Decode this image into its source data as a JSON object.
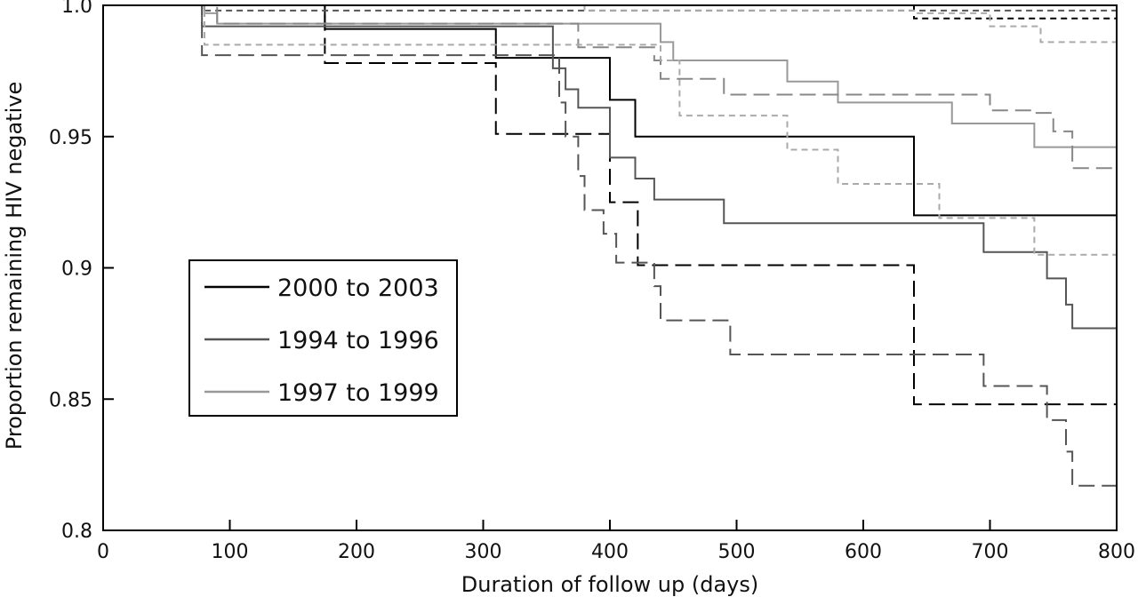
{
  "chart_data": {
    "type": "line",
    "step": true,
    "xlabel": "Duration of follow up (days)",
    "ylabel": "Proportion remaining HIV negative",
    "xlim": [
      0,
      800
    ],
    "ylim": [
      0.8,
      1.0
    ],
    "xticks": [
      0,
      100,
      200,
      300,
      400,
      500,
      600,
      700,
      800
    ],
    "yticks": [
      0.8,
      0.85,
      0.9,
      0.95,
      1.0
    ],
    "xtick_labels": [
      "0",
      "100",
      "200",
      "300",
      "400",
      "500",
      "600",
      "700",
      "800"
    ],
    "ytick_labels": [
      "0.8",
      "0.85",
      "0.9",
      "0.95",
      "1.0"
    ],
    "grid": false,
    "legend_position": "left",
    "legend": [
      "2000 to 2003",
      "1994 to 1996",
      "1997 to 1999"
    ],
    "series": [
      {
        "name": "2000 to 2003",
        "color": "#000000",
        "style": "solid",
        "x": [
          0,
          175,
          310,
          400,
          420,
          640,
          800
        ],
        "y": [
          1.0,
          0.991,
          0.98,
          0.964,
          0.95,
          0.92,
          0.92
        ]
      },
      {
        "color": "#000000",
        "style": "dashed",
        "x": [
          0,
          175,
          310,
          400,
          422,
          640,
          800
        ],
        "y": [
          1.0,
          0.978,
          0.951,
          0.925,
          0.901,
          0.848,
          0.848
        ]
      },
      {
        "color": "#000000",
        "style": "dotted",
        "x": [
          0,
          640,
          800
        ],
        "y": [
          1.0,
          0.995,
          0.995
        ]
      },
      {
        "name": "1994 to 1996",
        "color": "#555555",
        "style": "solid",
        "x": [
          0,
          78,
          355,
          365,
          375,
          400,
          420,
          435,
          490,
          695,
          745,
          760,
          765,
          800
        ],
        "y": [
          1.0,
          0.992,
          0.976,
          0.968,
          0.961,
          0.942,
          0.934,
          0.926,
          0.917,
          0.906,
          0.896,
          0.886,
          0.877,
          0.877
        ]
      },
      {
        "color": "#555555",
        "style": "dashed",
        "x": [
          0,
          78,
          360,
          365,
          375,
          380,
          395,
          405,
          435,
          440,
          495,
          695,
          705,
          735,
          745,
          760,
          765,
          800
        ],
        "y": [
          1.0,
          0.981,
          0.963,
          0.95,
          0.935,
          0.922,
          0.913,
          0.902,
          0.893,
          0.88,
          0.867,
          0.855,
          0.855,
          0.855,
          0.842,
          0.83,
          0.817,
          0.817
        ]
      },
      {
        "color": "#555555",
        "style": "dotted",
        "x": [
          0,
          78,
          800
        ],
        "y": [
          1.0,
          0.998,
          0.998
        ]
      },
      {
        "name": "1997 to 1999",
        "color": "#999999",
        "style": "solid",
        "x": [
          0,
          80,
          90,
          440,
          450,
          540,
          580,
          670,
          735,
          800
        ],
        "y": [
          1.0,
          0.997,
          0.993,
          0.986,
          0.979,
          0.971,
          0.963,
          0.955,
          0.946,
          0.946
        ]
      },
      {
        "color": "#888888",
        "style": "dashed",
        "x": [
          0,
          90,
          375,
          435,
          440,
          455,
          490,
          700,
          735,
          750,
          765,
          800
        ],
        "y": [
          1.0,
          0.993,
          0.984,
          0.979,
          0.972,
          0.972,
          0.966,
          0.96,
          0.959,
          0.952,
          0.938,
          0.938
        ]
      },
      {
        "color": "#aaaaaa",
        "style": "dotted",
        "x": [
          0,
          80,
          370,
          440,
          455,
          540,
          580,
          660,
          735,
          800
        ],
        "y": [
          1.0,
          0.985,
          0.985,
          0.979,
          0.958,
          0.945,
          0.932,
          0.919,
          0.905,
          0.905
        ]
      },
      {
        "color": "#aaaaaa",
        "style": "dotted",
        "x": [
          0,
          380,
          640,
          700,
          740,
          800
        ],
        "y": [
          1.0,
          0.998,
          0.997,
          0.992,
          0.986,
          0.986
        ]
      }
    ]
  }
}
